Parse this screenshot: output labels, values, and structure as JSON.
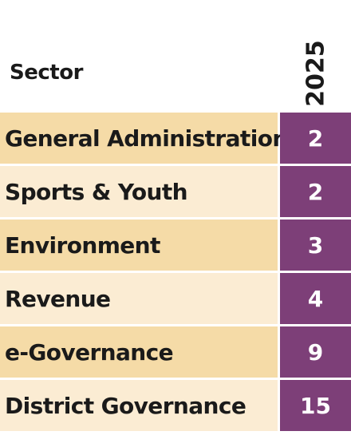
{
  "header": {
    "sector_label": "Sector",
    "year_label": "2025"
  },
  "colors": {
    "row_dark": "#f5dba7",
    "row_light": "#fbecd3",
    "value_bg": "#7d3f78",
    "value_text": "#ffffff"
  },
  "rows": [
    {
      "sector": "General Administration",
      "value": "2"
    },
    {
      "sector": "Sports & Youth",
      "value": "2"
    },
    {
      "sector": "Environment",
      "value": "3"
    },
    {
      "sector": "Revenue",
      "value": "4"
    },
    {
      "sector": "e-Governance",
      "value": "9"
    },
    {
      "sector": "District Governance",
      "value": "15"
    }
  ]
}
